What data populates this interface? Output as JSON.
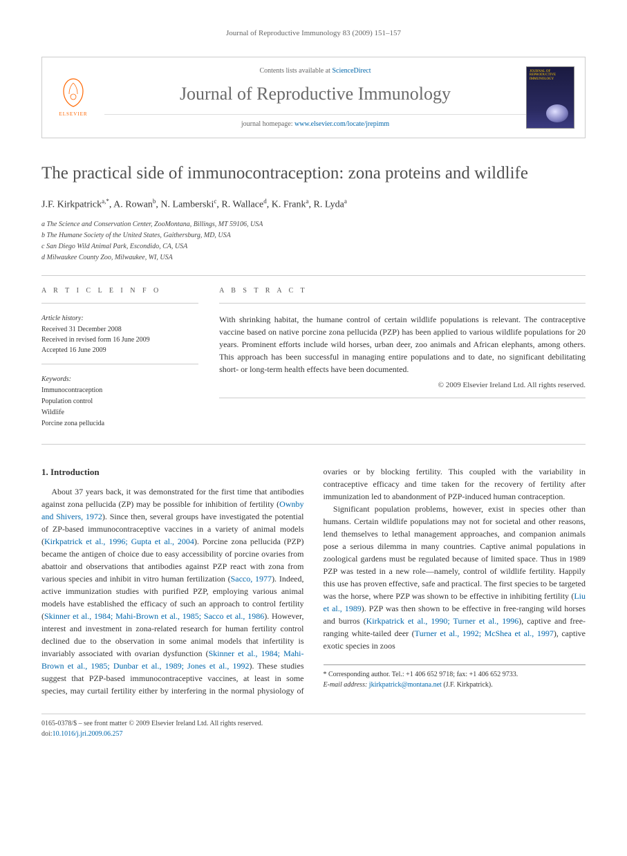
{
  "running_header": "Journal of Reproductive Immunology 83 (2009) 151–157",
  "journal_box": {
    "publisher_name": "ELSEVIER",
    "contents_prefix": "Contents lists available at ",
    "contents_link": "ScienceDirect",
    "journal_name": "Journal of Reproductive Immunology",
    "homepage_prefix": "journal homepage: ",
    "homepage_url": "www.elsevier.com/locate/jrepimm",
    "cover_title": "JOURNAL OF REPRODUCTIVE IMMUNOLOGY"
  },
  "article": {
    "title": "The practical side of immunocontraception: zona proteins and wildlife",
    "authors_html": "J.F. Kirkpatrick<sup>a,*</sup>, A. Rowan<sup>b</sup>, N. Lamberski<sup>c</sup>, R. Wallace<sup>d</sup>, K. Frank<sup>a</sup>, R. Lyda<sup>a</sup>",
    "affiliations": [
      "a The Science and Conservation Center, ZooMontana, Billings, MT 59106, USA",
      "b The Humane Society of the United States, Gaithersburg, MD, USA",
      "c San Diego Wild Animal Park, Escondido, CA, USA",
      "d Milwaukee County Zoo, Milwaukee, WI, USA"
    ]
  },
  "article_info": {
    "label": "A R T I C L E   I N F O",
    "history_label": "Article history:",
    "received": "Received 31 December 2008",
    "revised": "Received in revised form 16 June 2009",
    "accepted": "Accepted 16 June 2009",
    "keywords_label": "Keywords:",
    "keywords": [
      "Immunocontraception",
      "Population control",
      "Wildlife",
      "Porcine zona pellucida"
    ]
  },
  "abstract": {
    "label": "A B S T R A C T",
    "text": "With shrinking habitat, the humane control of certain wildlife populations is relevant. The contraceptive vaccine based on native porcine zona pellucida (PZP) has been applied to various wildlife populations for 20 years. Prominent efforts include wild horses, urban deer, zoo animals and African elephants, among others. This approach has been successful in managing entire populations and to date, no significant debilitating short- or long-term health effects have been documented.",
    "copyright": "© 2009 Elsevier Ireland Ltd. All rights reserved."
  },
  "body": {
    "section_heading": "1. Introduction",
    "para1_a": "About 37 years back, it was demonstrated for the first time that antibodies against zona pellucida (ZP) may be possible for inhibition of fertility (",
    "cite1": "Ownby and Shivers, 1972",
    "para1_b": "). Since then, several groups have investigated the potential of ZP-based immunocontraceptive vaccines in a variety of animal models (",
    "cite2": "Kirkpatrick et al., 1996; Gupta et al., 2004",
    "para1_c": "). Porcine zona pellucida (PZP) became the antigen of choice due to easy accessibility of porcine ovaries from abattoir and observations that antibodies against PZP react with zona from various species and inhibit in vitro human fertilization (",
    "cite3": "Sacco, 1977",
    "para1_d": "). Indeed, active immunization studies with purified PZP, employing various animal models have established the efficacy of such an approach to control fertility (",
    "cite4": "Skinner et al., 1984; Mahi-Brown et al., 1985; Sacco et al., 1986",
    "para1_e": "). However, interest and investment in zona-related research for human fertility control declined due to the observation in some animal models that infertility is invariably associated with ovarian dys",
    "para2_a": "function (",
    "cite5": "Skinner et al., 1984; Mahi-Brown et al., 1985; Dunbar et al., 1989; Jones et al., 1992",
    "para2_b": "). These studies suggest that PZP-based immunocontraceptive vaccines, at least in some species, may curtail fertility either by interfering in the normal physiology of ovaries or by blocking fertility. This coupled with the variability in contraceptive efficacy and time taken for the recovery of fertility after immunization led to abandonment of PZP-induced human contraception.",
    "para3_a": "Significant population problems, however, exist in species other than humans. Certain wildlife populations may not for societal and other reasons, lend themselves to lethal management approaches, and companion animals pose a serious dilemma in many countries. Captive animal populations in zoological gardens must be regulated because of limited space. Thus in 1989 PZP was tested in a new role—namely, control of wildlife fertility. Happily this use has proven effective, safe and practical. The first species to be targeted was the horse, where PZP was shown to be effective in inhibiting fertility (",
    "cite6": "Liu et al., 1989",
    "para3_b": "). PZP was then shown to be effective in free-ranging wild horses and burros (",
    "cite7": "Kirkpatrick et al., 1990; Turner et al., 1996",
    "para3_c": "), captive and free-ranging white-tailed deer (",
    "cite8": "Turner et al., 1992; McShea et al., 1997",
    "para3_d": "), captive exotic species in zoos"
  },
  "corresponding": {
    "label": "* Corresponding author. Tel.: +1 406 652 9718; fax: +1 406 652 9733.",
    "email_label": "E-mail address:",
    "email": "jkirkpatrick@montana.net",
    "email_suffix": "(J.F. Kirkpatrick)."
  },
  "footer": {
    "issn_line": "0165-0378/$ – see front matter © 2009 Elsevier Ireland Ltd. All rights reserved.",
    "doi_label": "doi:",
    "doi": "10.1016/j.jri.2009.06.257"
  },
  "colors": {
    "link": "#0066aa",
    "publisher_orange": "#ff6600",
    "title_gray": "#505050",
    "journal_gray": "#6a6a6a",
    "border": "#cccccc"
  }
}
